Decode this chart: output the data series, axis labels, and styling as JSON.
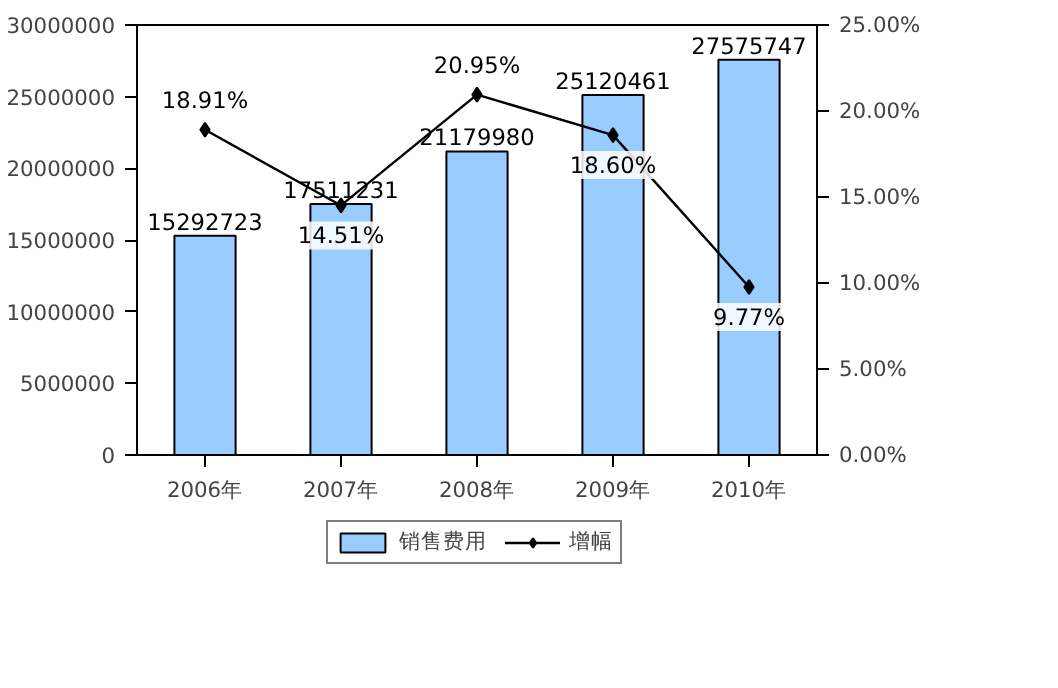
{
  "chart_data": {
    "type": "bar",
    "categories": [
      "2006年",
      "2007年",
      "2008年",
      "2009年",
      "2010年"
    ],
    "series": [
      {
        "name": "销售费用",
        "color": "#99ccff",
        "values": [
          15292723,
          17511231,
          21179980,
          25120461,
          27575747
        ],
        "value_labels": [
          "15292723",
          "17511231",
          "21179980",
          "25120461",
          "27575747"
        ]
      },
      {
        "name": "增幅",
        "type": "line",
        "axis": "y2",
        "color": "#000000",
        "marker": "diamond",
        "values": [
          18.91,
          14.51,
          20.95,
          18.6,
          9.77
        ],
        "value_labels": [
          "18.91%",
          "14.51%",
          "20.95%",
          "18.60%",
          "9.77%"
        ]
      }
    ],
    "ylim": [
      0,
      30000000
    ],
    "yticks": [
      0,
      5000000,
      10000000,
      15000000,
      20000000,
      25000000,
      30000000
    ],
    "y2lim": [
      0,
      25
    ],
    "y2ticks": [
      {
        "value": 0,
        "label": "0.00%"
      },
      {
        "value": 5,
        "label": "5.00%"
      },
      {
        "value": 10,
        "label": "10.00%"
      },
      {
        "value": 15,
        "label": "15.00%"
      },
      {
        "value": 20,
        "label": "20.00%"
      },
      {
        "value": 25,
        "label": "25.00%"
      }
    ],
    "legend": "bottom"
  }
}
